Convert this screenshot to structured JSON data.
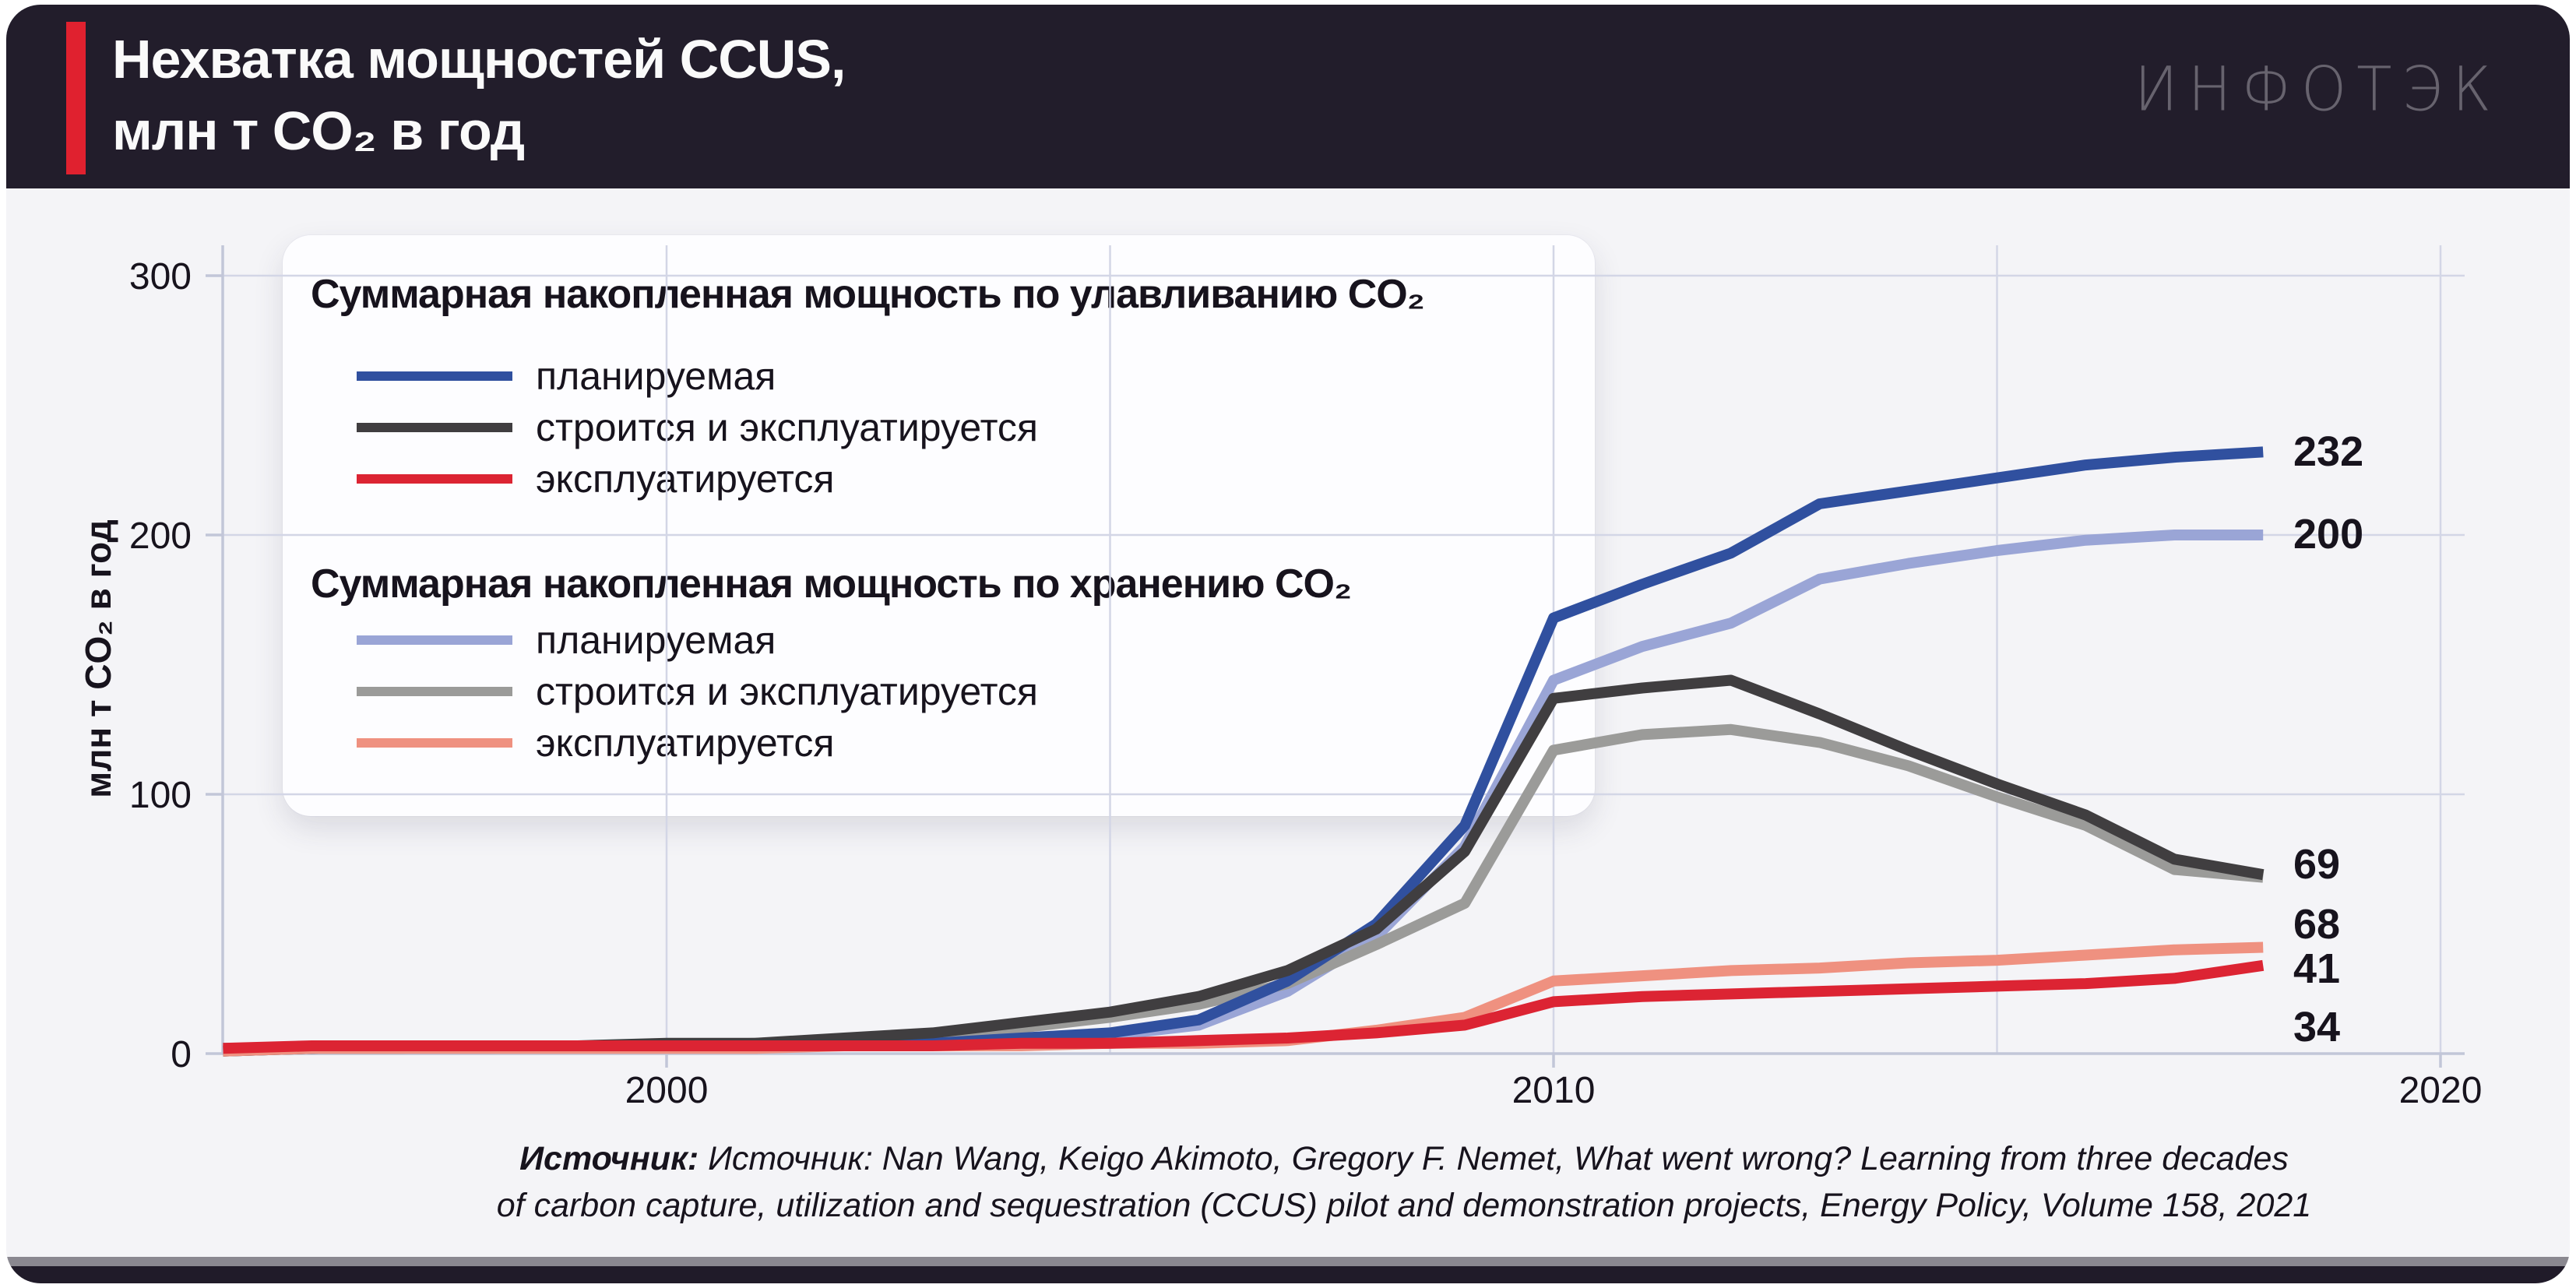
{
  "header": {
    "title_line1": "Нехватка мощностей CCUS,",
    "title_line2": "млн т CO₂ в год",
    "logo": "ИНФОТЭК"
  },
  "legend": {
    "groups": [
      {
        "title": "Суммарная накопленная мощность по улавливанию CO₂",
        "items": [
          {
            "label": "планируемая",
            "series": "capture_planned"
          },
          {
            "label": "строится и эксплуатируется",
            "series": "capture_built"
          },
          {
            "label": "эксплуатируется",
            "series": "capture_operating"
          }
        ]
      },
      {
        "title": "Суммарная накопленная мощность по хранению CO₂",
        "items": [
          {
            "label": "планируемая",
            "series": "storage_planned"
          },
          {
            "label": "строится и эксплуатируется",
            "series": "storage_built"
          },
          {
            "label": "эксплуатируется",
            "series": "storage_operating"
          }
        ]
      }
    ]
  },
  "chart_data": {
    "type": "line",
    "title": "Нехватка мощностей CCUS, млн т CO₂ в год",
    "ylabel": "млн т CO₂ в год",
    "xlabel": "",
    "xlim": [
      1995,
      2020.3
    ],
    "ylim": [
      0,
      310
    ],
    "x_gridlines": [
      2000,
      2005,
      2010,
      2015,
      2020
    ],
    "x_ticks_labeled": [
      2000,
      2010,
      2020
    ],
    "y_ticks": [
      0,
      100,
      200,
      300
    ],
    "grid": true,
    "legend_position": "upper-left",
    "x": [
      1995,
      1996,
      1997,
      1998,
      1999,
      2000,
      2001,
      2002,
      2003,
      2004,
      2005,
      2006,
      2007,
      2008,
      2009,
      2010,
      2011,
      2012,
      2013,
      2014,
      2015,
      2016,
      2017,
      2018
    ],
    "series": [
      {
        "id": "capture_planned",
        "name": "Суммарная накопленная мощность по улавливанию CO₂ — планируемая",
        "color": "#30509f",
        "end_label": "232",
        "values": [
          2,
          2,
          3,
          3,
          3,
          3,
          3,
          4,
          4,
          6,
          8,
          13,
          28,
          50,
          88,
          168,
          181,
          193,
          212,
          217,
          222,
          227,
          230,
          232
        ]
      },
      {
        "id": "capture_built",
        "name": "Суммарная накопленная мощность по улавливанию CO₂ — строится и эксплуатируется",
        "color": "#403e40",
        "end_label": "69",
        "values": [
          1,
          2,
          3,
          3,
          3,
          4,
          4,
          6,
          8,
          12,
          16,
          22,
          32,
          48,
          78,
          137,
          141,
          144,
          131,
          117,
          104,
          92,
          75,
          69
        ]
      },
      {
        "id": "capture_operating",
        "name": "Суммарная накопленная мощность по улавливанию CO₂ — эксплуатируется",
        "color": "#dc2433",
        "end_label": "34",
        "values": [
          2,
          3,
          3,
          3,
          3,
          3,
          3,
          3,
          3,
          4,
          4,
          5,
          6,
          8,
          11,
          20,
          22,
          23,
          24,
          25,
          26,
          27,
          29,
          34
        ]
      },
      {
        "id": "storage_planned",
        "name": "Суммарная накопленная мощность по хранению CO₂ — планируемая",
        "color": "#9aa5d6",
        "end_label": "200",
        "values": [
          1,
          2,
          2,
          2,
          3,
          3,
          3,
          3,
          4,
          5,
          7,
          11,
          24,
          45,
          80,
          144,
          157,
          166,
          183,
          189,
          194,
          198,
          200,
          200
        ]
      },
      {
        "id": "storage_built",
        "name": "Суммарная накопленная мощность по хранению CO₂ — строится и эксплуатируется",
        "color": "#9b9b99",
        "end_label": "68",
        "values": [
          1,
          2,
          2,
          3,
          3,
          3,
          4,
          5,
          7,
          10,
          14,
          19,
          27,
          42,
          58,
          117,
          123,
          125,
          120,
          111,
          99,
          88,
          71,
          68
        ]
      },
      {
        "id": "storage_operating",
        "name": "Суммарная накопленная мощность по хранению CO₂ — эксплуатируется",
        "color": "#ef9180",
        "end_label": "41",
        "values": [
          1,
          2,
          2,
          2,
          2,
          2,
          2,
          3,
          3,
          3,
          4,
          4,
          5,
          9,
          14,
          28,
          30,
          32,
          33,
          35,
          36,
          38,
          40,
          41
        ]
      }
    ],
    "colors": {
      "accent_red": "#e0212f",
      "header_bg": "#221d2b",
      "body_bg": "#f4f4f7",
      "legend_bg": "#fdfdff",
      "gridline": "#d3d6e6",
      "axis": "#c2c6d8",
      "text": "#17131d",
      "logo_gray": "#67636e"
    }
  },
  "source": {
    "prefix": "Источник: ",
    "line1": "Источник: Nan Wang, Keigo Akimoto, Gregory F. Nemet, What went wrong? Learning from three decades",
    "line2": "of carbon capture, utilization and sequestration (CCUS) pilot and demonstration projects, Energy Policy, Volume 158, 2021"
  }
}
